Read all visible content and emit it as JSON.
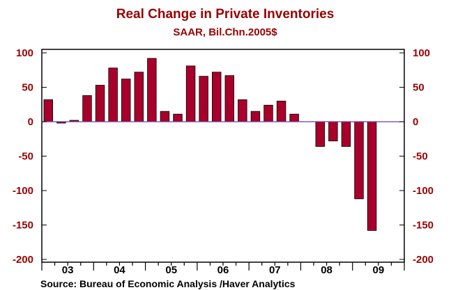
{
  "chart_data": {
    "type": "bar",
    "title": "Real Change in Private Inventories",
    "subtitle": "SAAR, Bil.Chn.2005$",
    "source": "Source:  Bureau of Economic Analysis /Haver Analytics",
    "ylim": [
      -200,
      100
    ],
    "yticks": [
      100,
      50,
      0,
      -50,
      -100,
      -150,
      -200
    ],
    "ytick_labels": [
      "100",
      "50",
      "0",
      "-50",
      "-100",
      "-150",
      "-200"
    ],
    "year_labels": [
      "03",
      "04",
      "05",
      "06",
      "07",
      "08",
      "09"
    ],
    "quarters": [
      "2003Q1",
      "2003Q2",
      "2003Q3",
      "2003Q4",
      "2004Q1",
      "2004Q2",
      "2004Q3",
      "2004Q4",
      "2005Q1",
      "2005Q2",
      "2005Q3",
      "2005Q4",
      "2006Q1",
      "2006Q2",
      "2006Q3",
      "2006Q4",
      "2007Q1",
      "2007Q2",
      "2007Q3",
      "2007Q4",
      "2008Q1",
      "2008Q2",
      "2008Q3",
      "2008Q4",
      "2009Q1",
      "2009Q2",
      "2009Q3",
      "2009Q4"
    ],
    "values": [
      32,
      -2,
      2,
      38,
      53,
      78,
      62,
      72,
      92,
      15,
      11,
      81,
      66,
      72,
      67,
      32,
      15,
      24,
      30,
      11,
      null,
      -36,
      -28,
      -36,
      -112,
      -158,
      null,
      null
    ],
    "grid": false,
    "bar_color": "#a8002a",
    "zero_line_color": "#6a3ab0"
  }
}
